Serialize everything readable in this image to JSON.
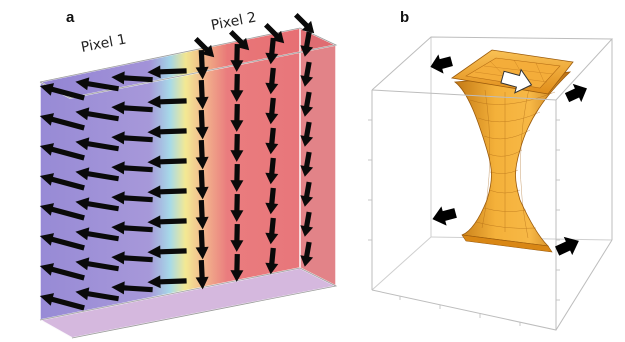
{
  "panel_a": {
    "letter": "a",
    "pixel1_label": "Pixel 1",
    "pixel2_label": "Pixel 2"
  },
  "panel_b": {
    "letter": "b"
  },
  "colors": {
    "pixel1_fill": "#8f7fcf",
    "pixel2_fill": "#e76b70",
    "transition_yellow": "#f1e37e",
    "transition_cyan": "#8fd4e8",
    "arrow": "#0a0a0a",
    "surface": "#f0a226",
    "surface_mesh": "#b26a10"
  }
}
